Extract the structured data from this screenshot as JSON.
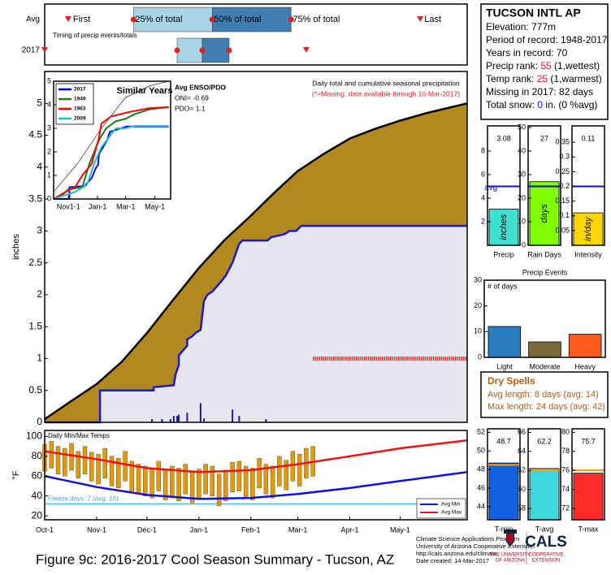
{
  "chart_data": [
    {
      "type": "timing",
      "xlim": [
        0,
        252
      ],
      "subtitle": "Timing of precip events/totals",
      "labels": {
        "first": "First",
        "q25": "25% of total",
        "q50": "50% of total",
        "q75": "75% of total",
        "last": "Last"
      },
      "box_colors": [
        "#a8d4e6",
        "#3f7db3"
      ],
      "marker_color": "#e02020",
      "rows": [
        {
          "label": "Avg",
          "first": 14,
          "q25": 53,
          "q50": 100,
          "q75": 147,
          "last": 224
        },
        {
          "label": "2017",
          "first": 0,
          "q25": 79,
          "q50": 94,
          "q75": 110,
          "last": 156
        }
      ]
    },
    {
      "type": "area",
      "title": "Daily total and cumulative seasonal precipitation",
      "subtitle": "(*=Missing, data available through 10-Mar-2017)",
      "ylabel": "inches",
      "xlim": [
        0,
        252
      ],
      "ylim": [
        0,
        5.5
      ],
      "yticks": [
        0,
        0.5,
        1,
        1.5,
        2,
        2.5,
        3,
        3.5,
        4,
        4.5,
        5
      ],
      "average": {
        "color": "#b3891f",
        "x": [
          0,
          14,
          31,
          46,
          61,
          76,
          92,
          107,
          123,
          137,
          151,
          166,
          182,
          197,
          212,
          228,
          244,
          252
        ],
        "values": [
          0.05,
          0.3,
          0.6,
          0.95,
          1.4,
          1.9,
          2.42,
          2.85,
          3.24,
          3.6,
          3.94,
          4.2,
          4.45,
          4.6,
          4.73,
          4.85,
          4.95,
          5.0
        ]
      },
      "season": {
        "color": "#1a1ad0",
        "fill": "#e6e6ee",
        "x": [
          0,
          33,
          33,
          65,
          65,
          77,
          78,
          80,
          80,
          85,
          85,
          88,
          90,
          93,
          95,
          97,
          100,
          105,
          108,
          112,
          116,
          118,
          133,
          135,
          143,
          146,
          150,
          153,
          252
        ],
        "values": [
          0,
          0,
          0.5,
          0.5,
          0.55,
          0.58,
          0.75,
          0.9,
          1.05,
          1.2,
          1.3,
          1.35,
          1.4,
          1.45,
          1.9,
          2.0,
          2.05,
          2.2,
          2.3,
          2.5,
          2.8,
          2.85,
          2.85,
          2.9,
          2.95,
          3.0,
          3.0,
          3.08,
          3.08
        ]
      },
      "daily": {
        "color": "#1c1c8c",
        "x": [
          64,
          70,
          75,
          77,
          79,
          80,
          85,
          93,
          95,
          112,
          116,
          132
        ],
        "values": [
          0.05,
          0.05,
          0.05,
          0.1,
          0.1,
          0.12,
          0.15,
          0.3,
          0.06,
          0.2,
          0.1,
          0.05
        ]
      },
      "missing": {
        "x": [
          160,
          252
        ],
        "value": 1,
        "color": "#e03030"
      }
    },
    {
      "type": "line",
      "title": "Similar Years",
      "enso_title": "Avg ENSO/PDO",
      "oni": "ONI= -0.69",
      "pdo": "PDO= 1.1",
      "xlim": [
        0,
        245
      ],
      "ylim": [
        0,
        5
      ],
      "yticks": [
        0,
        1,
        2,
        3,
        4,
        5
      ],
      "xticks": [
        {
          "value": 31,
          "label": "Nov1-1"
        },
        {
          "value": 92,
          "label": "Jan-1"
        },
        {
          "value": 151,
          "label": "Mar-1"
        },
        {
          "value": 212,
          "label": "May-1"
        }
      ],
      "reference": {
        "color": "#000000",
        "x": [
          0,
          50,
          100,
          150,
          200,
          241
        ],
        "values": [
          0.3,
          1.5,
          3.0,
          4.3,
          4.8,
          5.0
        ]
      },
      "series": [
        {
          "name": "2017",
          "color": "#0000ff",
          "x": [
            0,
            33,
            33,
            65,
            80,
            88,
            93,
            95,
            112,
            118,
            153,
            241
          ],
          "values": [
            0,
            0,
            0.5,
            0.55,
            0.9,
            1.3,
            1.45,
            1.9,
            2.5,
            2.85,
            3.08,
            3.08
          ]
        },
        {
          "name": "1949",
          "color": "#1f7a1f",
          "x": [
            0,
            20,
            30,
            60,
            75,
            95,
            110,
            130,
            150,
            170,
            200,
            241
          ],
          "values": [
            0,
            0.2,
            0.4,
            0.5,
            1.5,
            2.5,
            3.0,
            3.3,
            3.4,
            3.6,
            3.8,
            3.9
          ]
        },
        {
          "name": "1963",
          "color": "#ff0000",
          "x": [
            0,
            25,
            45,
            60,
            80,
            95,
            100,
            120,
            140,
            160,
            200,
            241
          ],
          "values": [
            0,
            0.3,
            0.5,
            1.0,
            1.5,
            2.6,
            3.2,
            3.5,
            3.6,
            3.7,
            3.85,
            3.9
          ]
        },
        {
          "name": "2009",
          "color": "#20c0c0",
          "x": [
            0,
            30,
            45,
            70,
            85,
            100,
            115,
            130,
            150,
            170,
            200,
            241
          ],
          "values": [
            0,
            0.2,
            0.3,
            0.6,
            1.5,
            2.2,
            2.6,
            3.0,
            3.0,
            3.1,
            3.1,
            3.1
          ]
        }
      ]
    },
    {
      "type": "bar",
      "xlabel": "Precip",
      "unit_label": "inches",
      "values": [
        3.08
      ],
      "color": "#40e0d0",
      "avg": 5,
      "avg_label": "avg",
      "avg_color": "#1010c0",
      "ylim": [
        0,
        10
      ],
      "yticks": [
        2,
        4,
        6,
        8
      ]
    },
    {
      "type": "bar",
      "xlabel": "Rain Days",
      "unit_label": "days",
      "values": [
        27
      ],
      "color": "#80ff00",
      "avg": 25,
      "avg_color": "#1010c0",
      "ylim": [
        0,
        50
      ],
      "yticks": [
        0,
        10,
        20,
        30,
        40,
        50
      ]
    },
    {
      "type": "bar",
      "xlabel": "Intensity",
      "unit_label": "in/day",
      "values": [
        0.11
      ],
      "color": "#ffd700",
      "avg": 0.2,
      "avg_color": "#1010c0",
      "ylim": [
        0,
        0.4
      ],
      "yticks": [
        0.05,
        0.1,
        0.15,
        0.2,
        0.25,
        0.3,
        0.35
      ]
    },
    {
      "type": "bar",
      "title": "Precip Events",
      "ylabel": "# of days",
      "categories": [
        "Light",
        "Moderate",
        "Heavy"
      ],
      "values": [
        12,
        6,
        9
      ],
      "colors": [
        "#2b7bbf",
        "#7a6a3a",
        "#ff5a1f"
      ],
      "ylim": [
        0,
        30
      ],
      "yticks": [
        0,
        10,
        20,
        30
      ]
    },
    {
      "type": "range",
      "title": "Daily Min/Max Temps",
      "ylabel": "°F",
      "xlim": [
        0,
        252
      ],
      "ylim": [
        16,
        106
      ],
      "yticks": [
        20,
        40,
        60,
        80,
        100
      ],
      "xticks": [
        {
          "value": 0,
          "label": "Oct-1"
        },
        {
          "value": 31,
          "label": "Nov-1"
        },
        {
          "value": 61,
          "label": "Dec-1"
        },
        {
          "value": 92,
          "label": "Jan-1"
        },
        {
          "value": 123,
          "label": "Feb-1"
        },
        {
          "value": 151,
          "label": "Mar-1"
        },
        {
          "value": 182,
          "label": "Apr-1"
        },
        {
          "value": 212,
          "label": "May-1"
        }
      ],
      "daily": {
        "color": "#e09a10",
        "x": [
          0,
          4,
          8,
          12,
          16,
          20,
          24,
          28,
          32,
          36,
          40,
          44,
          48,
          52,
          56,
          60,
          64,
          68,
          72,
          76,
          80,
          84,
          88,
          92,
          96,
          100,
          104,
          108,
          112,
          116,
          120,
          124,
          128,
          132,
          136,
          140,
          144,
          148,
          152,
          156,
          160
        ],
        "max": [
          92,
          95,
          90,
          88,
          93,
          85,
          90,
          84,
          82,
          88,
          80,
          78,
          85,
          75,
          72,
          70,
          68,
          75,
          66,
          70,
          68,
          72,
          65,
          67,
          72,
          70,
          62,
          66,
          74,
          75,
          70,
          68,
          78,
          72,
          70,
          80,
          76,
          85,
          82,
          88,
          90
        ],
        "min": [
          65,
          68,
          62,
          60,
          66,
          58,
          62,
          55,
          52,
          58,
          50,
          48,
          55,
          45,
          42,
          40,
          38,
          45,
          36,
          40,
          35,
          42,
          33,
          38,
          42,
          40,
          30,
          35,
          44,
          45,
          38,
          36,
          48,
          42,
          38,
          50,
          46,
          55,
          50,
          58,
          60
        ]
      },
      "series": [
        {
          "name": "Avg Min",
          "color": "#1010e0",
          "x": [
            0,
            31,
            61,
            92,
            123,
            151,
            182,
            212,
            252
          ],
          "values": [
            60,
            49,
            41,
            37,
            38,
            42,
            48,
            55,
            64
          ]
        },
        {
          "name": "Avg Max",
          "color": "#ee1010",
          "x": [
            0,
            31,
            61,
            92,
            123,
            151,
            182,
            212,
            252
          ],
          "values": [
            85,
            77,
            68,
            64,
            66,
            72,
            80,
            88,
            96
          ]
        }
      ],
      "freeze": {
        "value": 32,
        "label": "Freeze days: 7 (avg. 16)",
        "color": "#4aa0e0"
      }
    },
    {
      "type": "bar",
      "xlabel": "T-min",
      "values": [
        48.7
      ],
      "color": "#1060e0",
      "avg": 48.5,
      "avg_color": "#ff9a00",
      "ylim": [
        42.6,
        52.2
      ],
      "yticks": [
        44,
        46,
        48,
        50,
        52
      ]
    },
    {
      "type": "bar",
      "xlabel": "T-avg",
      "values": [
        62.2
      ],
      "color": "#40d8e0",
      "avg": 62,
      "avg_color": "#ff9a00",
      "ylim": [
        56.8,
        66.2
      ],
      "yticks": [
        58,
        60,
        62,
        64,
        66
      ]
    },
    {
      "type": "bar",
      "xlabel": "T-max",
      "values": [
        75.7
      ],
      "color": "#ff2a2a",
      "avg": 76,
      "avg_color": "#ff9a00",
      "ylim": [
        70.8,
        80.2
      ],
      "yticks": [
        72,
        74,
        76,
        78,
        80
      ]
    }
  ],
  "station": {
    "name": "TUCSON INTL AP",
    "elevation": "Elevation: 777m",
    "period": "Period of record: 1948-2017",
    "years": "Years in record: 70",
    "precip_rank": {
      "label": "Precip rank: ",
      "value": 55,
      "note": " (1,wettest)"
    },
    "temp_rank": {
      "label": "Temp rank: ",
      "value": 25,
      "note": " (1,warmest)"
    },
    "missing": "Missing in 2017: 82 days",
    "snow": {
      "label": "Total snow: ",
      "value": 0,
      "note": " in. (0 %avg)"
    }
  },
  "dry_spells": {
    "title": "Dry Spells",
    "avg": "Avg length: 8 days (avg: 14)",
    "max": "Max length: 24 days (avg: 42)"
  },
  "footer": {
    "caption": "Figure 9c: 2016-2017 Cool Season Summary - Tucson, AZ",
    "credits": [
      "Climate Science Applications Program",
      "University of Arizona Cooperative Extension",
      "http://cals.arizona.edu/climate",
      "Date created: 14-Mar-2017"
    ],
    "ua": [
      "THE UNIVERSITY",
      "OF ARIZONA"
    ],
    "cals": "CALS",
    "cals_sub": [
      "COOPERATIVE",
      "EXTENSION"
    ]
  }
}
